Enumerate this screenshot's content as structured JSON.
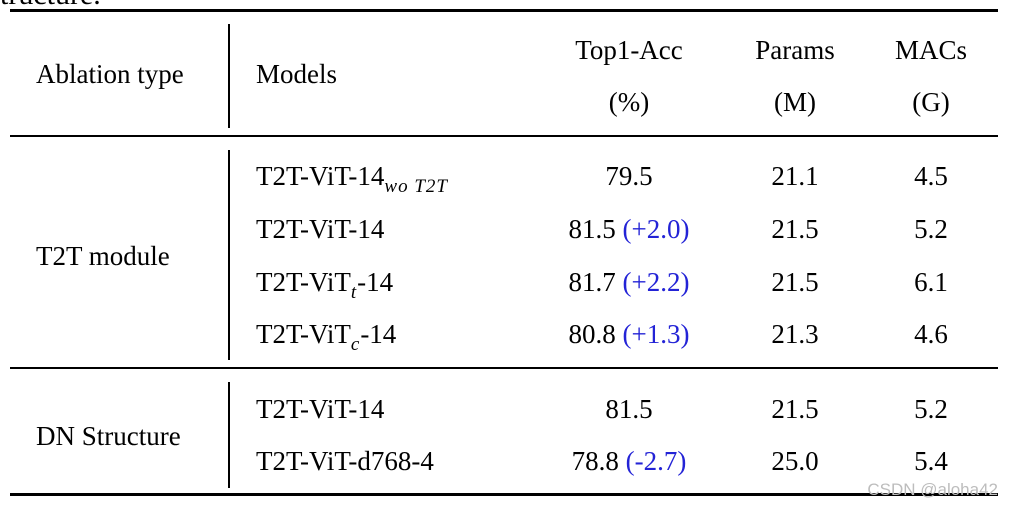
{
  "caption_fragment": "tructure.",
  "table": {
    "headers": {
      "ablation": "Ablation type",
      "models": "Models",
      "acc": [
        "Top1-Acc",
        "(%)"
      ],
      "params": [
        "Params",
        "(M)"
      ],
      "macs": [
        "MACs",
        "(G)"
      ]
    },
    "groups": [
      {
        "label": "T2T module",
        "rows": [
          {
            "model": "T2T-ViT-14",
            "model_sub": "wo T2T",
            "acc": "79.5",
            "delta": "",
            "params": "21.1",
            "macs": "4.5"
          },
          {
            "model": "T2T-ViT-14",
            "model_sub": "",
            "acc": "81.5",
            "delta": "(+2.0)",
            "params": "21.5",
            "macs": "5.2"
          },
          {
            "model": "T2T-ViT",
            "model_sub": "t",
            "model_suffix": "-14",
            "acc": "81.7",
            "delta": "(+2.2)",
            "params": "21.5",
            "macs": "6.1"
          },
          {
            "model": "T2T-ViT",
            "model_sub": "c",
            "model_suffix": "-14",
            "acc": "80.8",
            "delta": "(+1.3)",
            "params": "21.3",
            "macs": "4.6"
          }
        ]
      },
      {
        "label": "DN Structure",
        "rows": [
          {
            "model": "T2T-ViT-14",
            "model_sub": "",
            "acc": "81.5",
            "delta": "",
            "params": "21.5",
            "macs": "5.2"
          },
          {
            "model": "T2T-ViT-d768-4",
            "model_sub": "",
            "acc": "78.8",
            "delta": "(-2.7)",
            "params": "25.0",
            "macs": "5.4"
          }
        ]
      }
    ]
  },
  "watermark": "CSDN @aloha42",
  "colors": {
    "delta": "#2323d6",
    "rule": "#000000",
    "watermark": "#bdbdbd"
  }
}
